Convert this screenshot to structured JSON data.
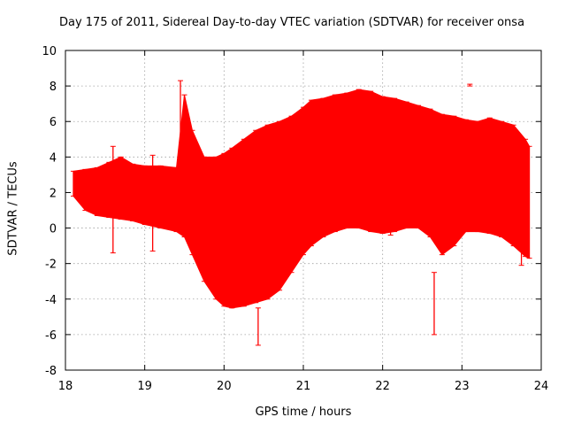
{
  "chart_data": {
    "type": "scatter",
    "title": "Day 175 of 2011, Sidereal Day-to-day VTEC variation (SDTVAR) for receiver onsa",
    "xlabel": "GPS time / hours",
    "ylabel": "SDTVAR / TECUs",
    "xlim": [
      18,
      24
    ],
    "ylim": [
      -8,
      10
    ],
    "xticks": [
      "18",
      "19",
      "20",
      "21",
      "22",
      "23",
      "24"
    ],
    "yticks": [
      "-8",
      "-6",
      "-4",
      "-2",
      "0",
      "2",
      "4",
      "6",
      "8",
      "10"
    ],
    "grid": true,
    "series": [
      {
        "name": "SDTVAR",
        "color": "#ff0000",
        "x": [
          18.1,
          18.25,
          18.4,
          18.55,
          18.7,
          18.85,
          19.0,
          19.2,
          19.4,
          19.5,
          19.6,
          19.75,
          19.9,
          20.0,
          20.1,
          20.25,
          20.4,
          20.55,
          20.7,
          20.85,
          21.0,
          21.1,
          21.25,
          21.4,
          21.55,
          21.7,
          21.85,
          22.0,
          22.15,
          22.3,
          22.45,
          22.6,
          22.75,
          22.9,
          23.05,
          23.2,
          23.35,
          23.5,
          23.65,
          23.8,
          23.85
        ],
        "upper": [
          3.2,
          3.3,
          3.4,
          3.7,
          4.0,
          3.6,
          3.5,
          3.5,
          3.4,
          7.5,
          5.5,
          4.0,
          4.0,
          4.2,
          4.5,
          5.0,
          5.5,
          5.8,
          6.0,
          6.3,
          6.8,
          7.2,
          7.3,
          7.5,
          7.6,
          7.8,
          7.7,
          7.4,
          7.3,
          7.1,
          6.9,
          6.7,
          6.4,
          6.3,
          6.1,
          6.0,
          6.2,
          6.0,
          5.8,
          5.0,
          4.6
        ],
        "lower": [
          1.8,
          1.0,
          0.7,
          0.6,
          0.5,
          0.4,
          0.2,
          0.0,
          -0.2,
          -0.5,
          -1.5,
          -3.0,
          -4.0,
          -4.4,
          -4.5,
          -4.4,
          -4.2,
          -4.0,
          -3.5,
          -2.5,
          -1.5,
          -1.0,
          -0.5,
          -0.2,
          0.0,
          0.0,
          -0.2,
          -0.3,
          -0.2,
          0.0,
          0.0,
          -0.5,
          -1.5,
          -1.0,
          -0.2,
          -0.2,
          -0.3,
          -0.5,
          -1.0,
          -1.6,
          -1.7
        ],
        "spikes": [
          {
            "x": 18.6,
            "min": -1.4,
            "max": 4.6
          },
          {
            "x": 19.1,
            "min": -1.3,
            "max": 4.1
          },
          {
            "x": 19.45,
            "min": 3.5,
            "max": 8.3
          },
          {
            "x": 20.43,
            "min": -6.6,
            "max": -4.5
          },
          {
            "x": 22.1,
            "min": -0.4,
            "max": 0.8
          },
          {
            "x": 22.65,
            "min": -6.0,
            "max": -2.5
          },
          {
            "x": 23.1,
            "min": 8.0,
            "max": 8.1
          },
          {
            "x": 23.75,
            "min": -2.1,
            "max": 0.0
          }
        ]
      }
    ]
  }
}
